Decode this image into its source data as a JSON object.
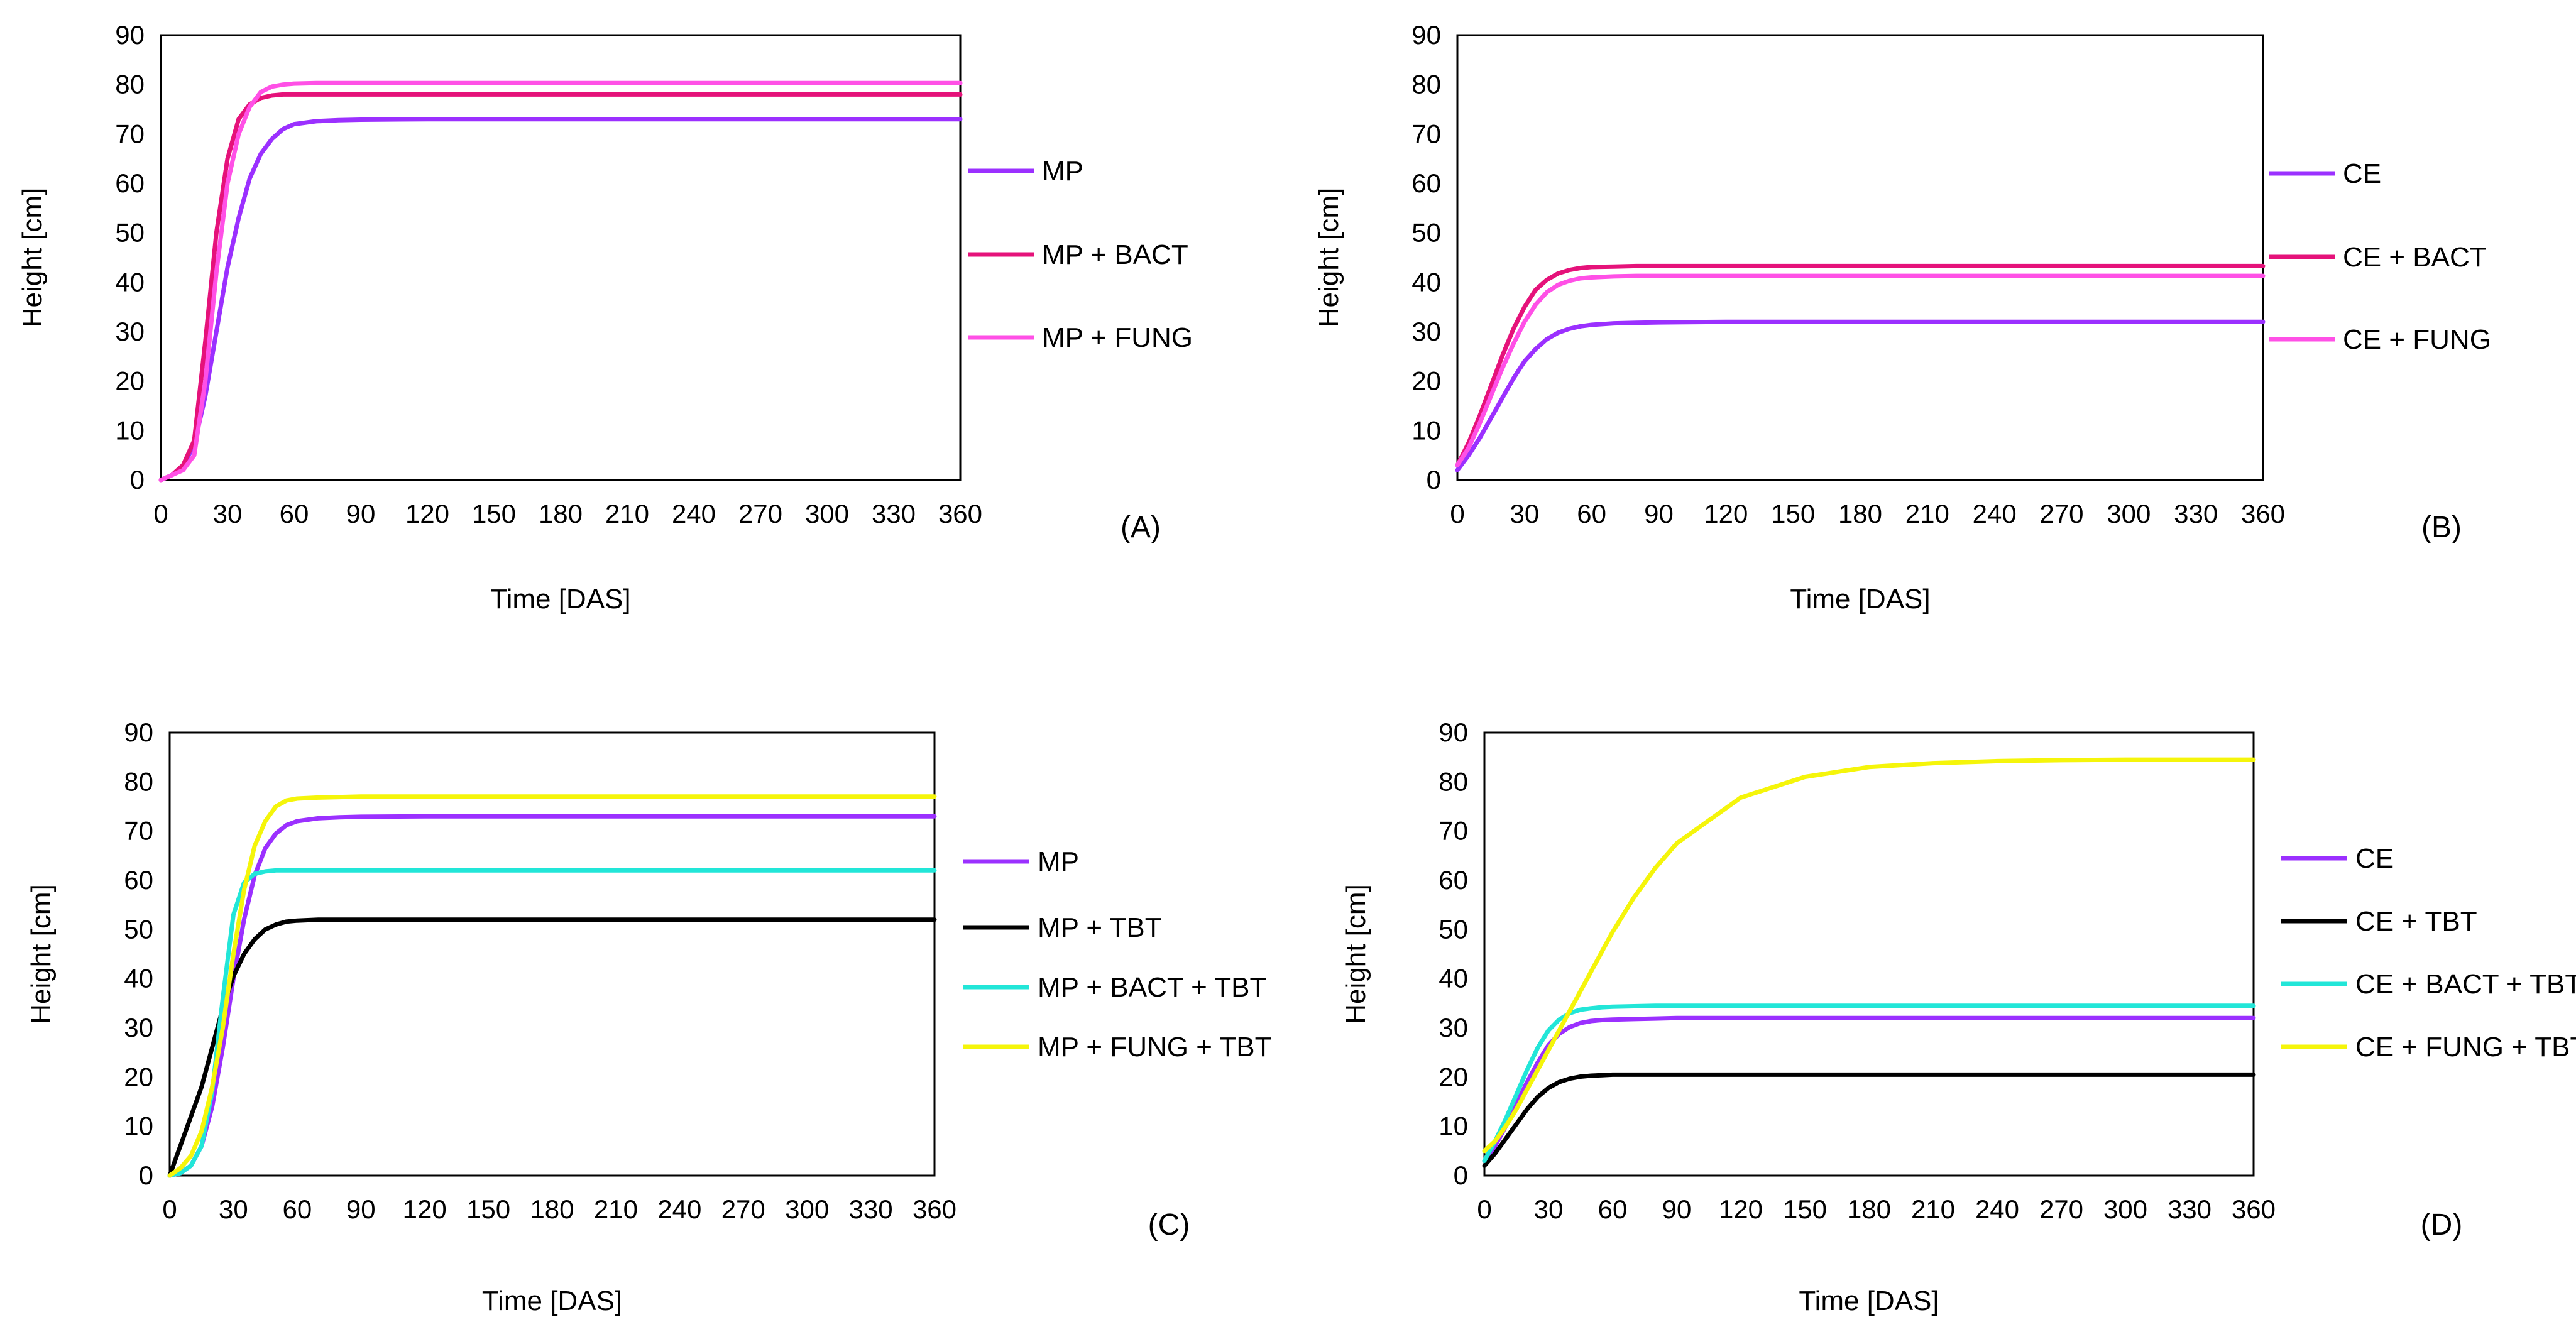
{
  "figure": {
    "colors": {
      "purple": "#9b30ff",
      "crimson": "#e5127a",
      "magenta": "#ff50e6",
      "black": "#000000",
      "cyan": "#22e6d8",
      "yellow": "#f5f50a"
    }
  },
  "chart_data": [
    {
      "type": "line",
      "panel": "(A)",
      "xlabel": "Time [DAS]",
      "ylabel": "Height [cm]",
      "xlim": [
        0,
        360
      ],
      "ylim": [
        0,
        90
      ],
      "xticks": [
        0,
        30,
        60,
        90,
        120,
        150,
        180,
        210,
        240,
        270,
        300,
        330,
        360
      ],
      "yticks": [
        0,
        10,
        20,
        30,
        40,
        50,
        60,
        70,
        80,
        90
      ],
      "grid": false,
      "legend": "right",
      "x": [
        0,
        5,
        10,
        15,
        20,
        25,
        30,
        35,
        40,
        45,
        50,
        55,
        60,
        70,
        80,
        90,
        120,
        150,
        180,
        210,
        240,
        270,
        300,
        330,
        360
      ],
      "series": [
        {
          "name": "MP",
          "color": "#9b30ff",
          "values": [
            0,
            1,
            3,
            7,
            17,
            30,
            43,
            53,
            61,
            66,
            69,
            71,
            72,
            72.6,
            72.8,
            72.9,
            73,
            73,
            73,
            73,
            73,
            73,
            73,
            73,
            73
          ]
        },
        {
          "name": "MP + BACT",
          "color": "#e5127a",
          "values": [
            0,
            1,
            3,
            8,
            28,
            50,
            65,
            73,
            76,
            77.3,
            77.8,
            78,
            78,
            78,
            78,
            78,
            78,
            78,
            78,
            78,
            78,
            78,
            78,
            78,
            78
          ]
        },
        {
          "name": "MP + FUNG",
          "color": "#ff50e6",
          "values": [
            0,
            1,
            2,
            5,
            20,
            42,
            60,
            70,
            75.5,
            78.5,
            79.6,
            80,
            80.2,
            80.3,
            80.3,
            80.3,
            80.3,
            80.3,
            80.3,
            80.3,
            80.3,
            80.3,
            80.3,
            80.3,
            80.3
          ]
        }
      ]
    },
    {
      "type": "line",
      "panel": "(B)",
      "xlabel": "Time [DAS]",
      "ylabel": "Height [cm]",
      "xlim": [
        0,
        360
      ],
      "ylim": [
        0,
        90
      ],
      "xticks": [
        0,
        30,
        60,
        90,
        120,
        150,
        180,
        210,
        240,
        270,
        300,
        330,
        360
      ],
      "yticks": [
        0,
        10,
        20,
        30,
        40,
        50,
        60,
        70,
        80,
        90
      ],
      "grid": false,
      "legend": "right",
      "x": [
        0,
        5,
        10,
        15,
        20,
        25,
        30,
        35,
        40,
        45,
        50,
        55,
        60,
        70,
        80,
        90,
        120,
        150,
        180,
        210,
        240,
        270,
        300,
        330,
        360
      ],
      "series": [
        {
          "name": "CE",
          "color": "#9b30ff",
          "values": [
            2,
            5,
            8.5,
            12.5,
            16.5,
            20.5,
            24,
            26.5,
            28.5,
            29.8,
            30.6,
            31.1,
            31.4,
            31.7,
            31.8,
            31.9,
            32,
            32,
            32,
            32,
            32,
            32,
            32,
            32,
            32
          ]
        },
        {
          "name": "CE + BACT",
          "color": "#e5127a",
          "values": [
            3,
            7.5,
            13,
            19,
            25,
            30.5,
            35,
            38.5,
            40.5,
            41.8,
            42.5,
            42.9,
            43.1,
            43.2,
            43.3,
            43.3,
            43.3,
            43.3,
            43.3,
            43.3,
            43.3,
            43.3,
            43.3,
            43.3,
            43.3
          ]
        },
        {
          "name": "CE + FUNG",
          "color": "#ff50e6",
          "values": [
            3,
            6.5,
            11.5,
            17,
            22.5,
            27.5,
            32,
            35.5,
            38,
            39.5,
            40.3,
            40.8,
            41,
            41.2,
            41.3,
            41.3,
            41.3,
            41.3,
            41.3,
            41.3,
            41.3,
            41.3,
            41.3,
            41.3,
            41.3
          ]
        }
      ]
    },
    {
      "type": "line",
      "panel": "(C)",
      "xlabel": "Time [DAS]",
      "ylabel": "Height [cm]",
      "xlim": [
        0,
        360
      ],
      "ylim": [
        0,
        90
      ],
      "xticks": [
        0,
        30,
        60,
        90,
        120,
        150,
        180,
        210,
        240,
        270,
        300,
        330,
        360
      ],
      "yticks": [
        0,
        10,
        20,
        30,
        40,
        50,
        60,
        70,
        80,
        90
      ],
      "grid": false,
      "legend": "right",
      "x": [
        0,
        5,
        10,
        15,
        20,
        25,
        30,
        35,
        40,
        45,
        50,
        55,
        60,
        70,
        80,
        90,
        120,
        150,
        180,
        210,
        240,
        270,
        300,
        330,
        360
      ],
      "series": [
        {
          "name": "MP",
          "color": "#9b30ff",
          "values": [
            0,
            0.5,
            2,
            6,
            14,
            26,
            40,
            52,
            61,
            66.5,
            69.5,
            71.2,
            72,
            72.6,
            72.8,
            72.9,
            73,
            73,
            73,
            73,
            73,
            73,
            73,
            73,
            73
          ]
        },
        {
          "name": "MP + TBT",
          "color": "#000000",
          "values": [
            0,
            6,
            12,
            18,
            26,
            34,
            40.5,
            45,
            48,
            50,
            51,
            51.6,
            51.8,
            52,
            52,
            52,
            52,
            52,
            52,
            52,
            52,
            52,
            52,
            52,
            52
          ]
        },
        {
          "name": "MP + BACT + TBT",
          "color": "#22e6d8",
          "values": [
            0,
            0.5,
            2,
            6,
            17,
            36,
            53,
            59.5,
            61.3,
            61.8,
            62,
            62,
            62,
            62,
            62,
            62,
            62,
            62,
            62,
            62,
            62,
            62,
            62,
            62,
            62
          ]
        },
        {
          "name": "MP + FUNG + TBT",
          "color": "#f5f50a",
          "values": [
            0,
            1.5,
            4,
            9,
            18,
            30,
            45,
            58,
            67,
            72,
            75,
            76.2,
            76.6,
            76.8,
            76.9,
            77,
            77,
            77,
            77,
            77,
            77,
            77,
            77,
            77,
            77
          ]
        }
      ]
    },
    {
      "type": "line",
      "panel": "(D)",
      "xlabel": "Time [DAS]",
      "ylabel": "Height [cm]",
      "xlim": [
        0,
        360
      ],
      "ylim": [
        0,
        90
      ],
      "xticks": [
        0,
        30,
        60,
        90,
        120,
        150,
        180,
        210,
        240,
        270,
        300,
        330,
        360
      ],
      "yticks": [
        0,
        10,
        20,
        30,
        40,
        50,
        60,
        70,
        80,
        90
      ],
      "grid": false,
      "legend": "right",
      "x": [
        0,
        5,
        10,
        15,
        20,
        25,
        30,
        35,
        40,
        45,
        50,
        55,
        60,
        70,
        80,
        90,
        120,
        150,
        180,
        210,
        240,
        270,
        300,
        330,
        360
      ],
      "series": [
        {
          "name": "CE",
          "color": "#9b30ff",
          "values": [
            3,
            6,
            10,
            14.5,
            19,
            23,
            26.5,
            28.8,
            30.2,
            31,
            31.4,
            31.6,
            31.7,
            31.8,
            31.9,
            32,
            32,
            32,
            32,
            32,
            32,
            32,
            32,
            32,
            32
          ]
        },
        {
          "name": "CE + TBT",
          "color": "#000000",
          "values": [
            2,
            4.5,
            7.5,
            10.5,
            13.5,
            16,
            17.8,
            19,
            19.7,
            20.1,
            20.3,
            20.4,
            20.5,
            20.5,
            20.5,
            20.5,
            20.5,
            20.5,
            20.5,
            20.5,
            20.5,
            20.5,
            20.5,
            20.5,
            20.5
          ]
        },
        {
          "name": "CE + BACT + TBT",
          "color": "#22e6d8",
          "values": [
            3,
            7,
            11.5,
            16.5,
            21.5,
            26,
            29.5,
            31.7,
            33,
            33.7,
            34,
            34.2,
            34.3,
            34.4,
            34.5,
            34.5,
            34.5,
            34.5,
            34.5,
            34.5,
            34.5,
            34.5,
            34.5,
            34.5,
            34.5
          ]
        },
        {
          "name": "CE + FUNG + TBT",
          "color": "#f5f50a",
          "values": [
            5,
            7,
            10,
            13.5,
            17.5,
            21.5,
            25.5,
            29.5,
            33.5,
            37.5,
            41.5,
            45.5,
            49.5,
            56.5,
            62.5,
            67.5,
            76.8,
            81,
            83,
            83.8,
            84.2,
            84.4,
            84.5,
            84.5,
            84.5
          ]
        }
      ]
    }
  ]
}
